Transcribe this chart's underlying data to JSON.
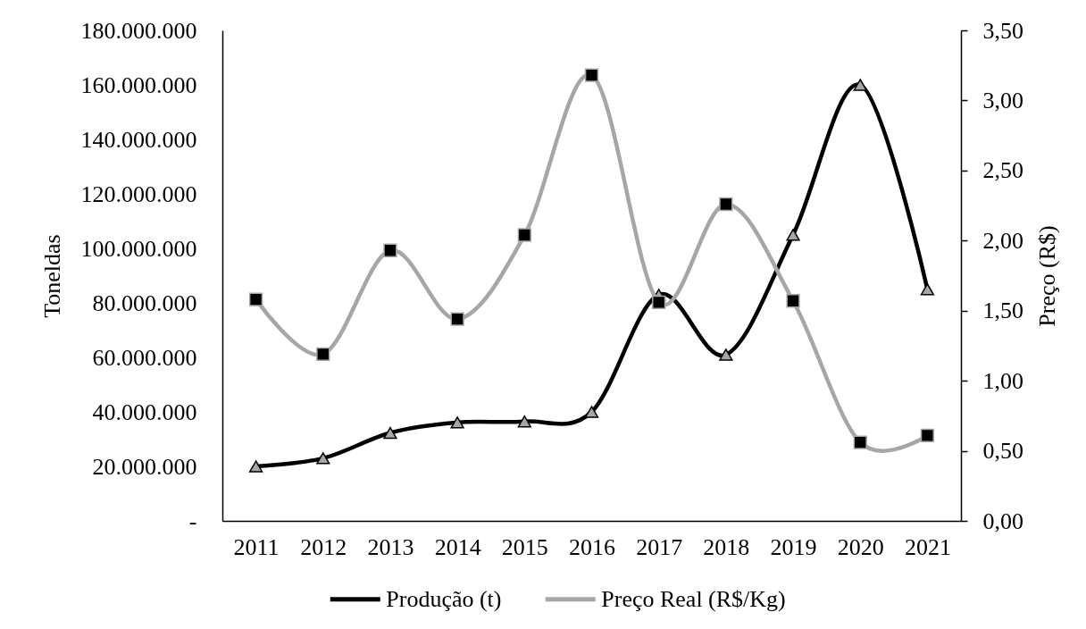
{
  "chart_data": {
    "type": "line",
    "categories": [
      "2011",
      "2012",
      "2013",
      "2014",
      "2015",
      "2016",
      "2017",
      "2018",
      "2019",
      "2020",
      "2021"
    ],
    "ylabel": "Toneldas",
    "y2label": "Preço (R$)",
    "ylim": [
      0,
      180000000
    ],
    "yticks": [
      {
        "value": 0,
        "label": "-"
      },
      {
        "value": 20000000,
        "label": "20.000.000"
      },
      {
        "value": 40000000,
        "label": "40.000.000"
      },
      {
        "value": 60000000,
        "label": "60.000.000"
      },
      {
        "value": 80000000,
        "label": "80.000.000"
      },
      {
        "value": 100000000,
        "label": "100.000.000"
      },
      {
        "value": 120000000,
        "label": "120.000.000"
      },
      {
        "value": 140000000,
        "label": "140.000.000"
      },
      {
        "value": 160000000,
        "label": "160.000.000"
      },
      {
        "value": 180000000,
        "label": "180.000.000"
      }
    ],
    "y2lim": [
      0,
      3.5
    ],
    "y2ticks": [
      {
        "value": 0,
        "label": "0,00"
      },
      {
        "value": 0.5,
        "label": "0,50"
      },
      {
        "value": 1,
        "label": "1,00"
      },
      {
        "value": 1.5,
        "label": "1,50"
      },
      {
        "value": 2,
        "label": "2,00"
      },
      {
        "value": 2.5,
        "label": "2,50"
      },
      {
        "value": 3,
        "label": "3,00"
      },
      {
        "value": 3.5,
        "label": "3,50"
      }
    ],
    "legend": "bottom",
    "line_style": "solid",
    "series": [
      {
        "name": "Produção (t)",
        "color": "#000000",
        "marker": "triangle",
        "colors": [
          "#a6a6a6",
          "#a6a6a6",
          "#a6a6a6",
          "#a6a6a6",
          "#a6a6a6",
          "#a6a6a6",
          "#a6a6a6",
          "#a6a6a6",
          "#a6a6a6",
          "#a6a6a6",
          "#a6a6a6"
        ],
        "values": [
          20000000,
          23000000,
          32300000,
          36100000,
          36500000,
          40000000,
          83000000,
          61000000,
          105000000,
          160000000,
          85000000
        ]
      },
      {
        "name": "Preço Real (R$/Kg)",
        "color": "#a6a6a6",
        "marker": "square",
        "axis": "y2",
        "colors": [
          "#000000",
          "#000000",
          "#000000",
          "#000000",
          "#000000",
          "#000000",
          "#000000",
          "#000000",
          "#000000",
          "#000000",
          "#000000"
        ],
        "values": [
          1.58,
          1.19,
          1.93,
          1.44,
          2.04,
          3.18,
          1.56,
          2.26,
          1.57,
          0.56,
          0.61
        ]
      }
    ]
  }
}
